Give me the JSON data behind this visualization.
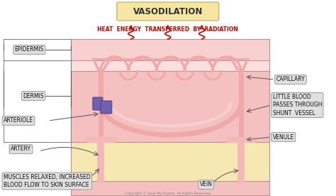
{
  "title": "VASODILATION",
  "title_bg": "#f5e6a3",
  "title_border": "#c8b870",
  "heat_text": "HEAT  ENERGY  TRANSFERRED  BY  RADIATION",
  "heat_color": "#cc0000",
  "bg_color": "#ffffff",
  "epi_color": "#f5c8c8",
  "epi_color2": "#f8dada",
  "dermis_color": "#f5b8b8",
  "lower_color": "#f5e8b0",
  "vessel_fill": "#f0a8a8",
  "vessel_edge": "#c87878",
  "sphincter_color": "#7060b0",
  "label_bg": "#e0e0e0",
  "label_border": "#999999",
  "copyright": "Copyright © Save My Exams. All Rights Reserved."
}
